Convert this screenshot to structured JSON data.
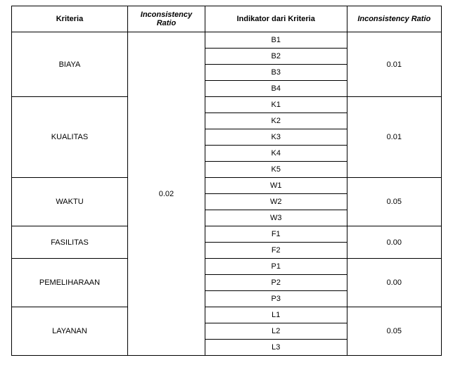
{
  "headers": {
    "kriteria": "Kriteria",
    "ratio1": "Inconsistency Ratio",
    "indikator": "Indikator dari Kriteria",
    "ratio2": "Inconsistency Ratio"
  },
  "groups": [
    {
      "kriteria": "BIAYA",
      "ratio": "0.01",
      "indicators": [
        "B1",
        "B2",
        "B3",
        "B4"
      ]
    },
    {
      "kriteria": "KUALITAS",
      "ratio": "0.01",
      "indicators": [
        "K1",
        "K2",
        "K3",
        "K4",
        "K5"
      ]
    },
    {
      "kriteria": "WAKTU",
      "ratio": "0.05",
      "indicators": [
        "W1",
        "W2",
        "W3"
      ]
    },
    {
      "kriteria": "FASILITAS",
      "ratio": "0.00",
      "indicators": [
        "F1",
        "F2"
      ]
    },
    {
      "kriteria": "PEMELIHARAAN",
      "ratio": "0.00",
      "indicators": [
        "P1",
        "P2",
        "P3"
      ]
    },
    {
      "kriteria": "LAYANAN",
      "ratio": "0.05",
      "indicators": [
        "L1",
        "L2",
        "L3"
      ]
    }
  ],
  "mainRatio": "0.02",
  "totalIndicatorRows": 20
}
